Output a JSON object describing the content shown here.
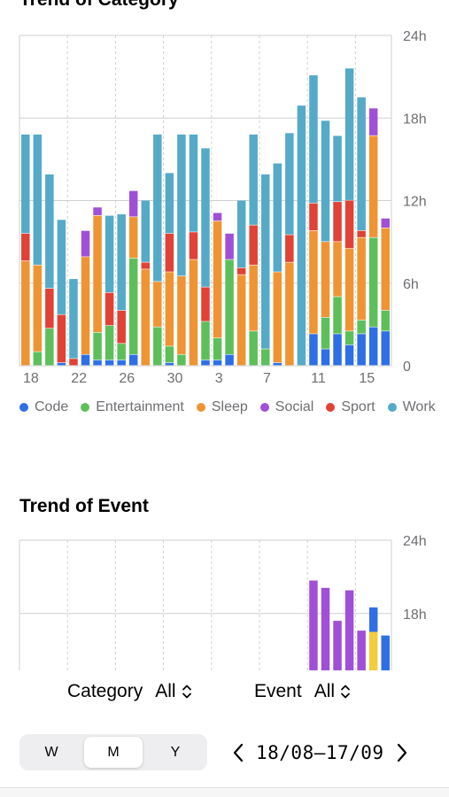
{
  "trend_category": {
    "title": "Trend of Category",
    "legend": [
      {
        "label": "Code",
        "color": "#2f6fe6"
      },
      {
        "label": "Entertainment",
        "color": "#5dbf5a"
      },
      {
        "label": "Sleep",
        "color": "#ef9433"
      },
      {
        "label": "Social",
        "color": "#a050d6"
      },
      {
        "label": "Sport",
        "color": "#e04235"
      },
      {
        "label": "Work",
        "color": "#55aac8"
      }
    ]
  },
  "trend_event": {
    "title": "Trend of Event",
    "series_colors": [
      "#a050d6",
      "#2f6fe6",
      "#f2cd3c"
    ]
  },
  "filters": {
    "category_label": "Category",
    "category_value": "All",
    "event_label": "Event",
    "event_value": "All"
  },
  "period_tabs": [
    "W",
    "M",
    "Y"
  ],
  "active_tab": "M",
  "date_range": "18/08–17/09",
  "chart_data": [
    {
      "type": "bar",
      "stacked": true,
      "title": "Trend of Category",
      "y_ticks": [
        "24h",
        "18h",
        "12h",
        "6h",
        "0"
      ],
      "ylim": [
        0,
        24
      ],
      "y_axis_position": "right",
      "x_tick_labels": [
        "18",
        "22",
        "26",
        "30",
        "3",
        "7",
        "11",
        "15"
      ],
      "grid": true,
      "legend_position": "bottom",
      "categories": [
        "18",
        "19",
        "20",
        "21",
        "22",
        "23",
        "24",
        "25",
        "26",
        "27",
        "28",
        "29",
        "30",
        "31",
        "1",
        "2",
        "3",
        "4",
        "5",
        "6",
        "7",
        "8",
        "9",
        "10",
        "11",
        "12",
        "13",
        "14",
        "15",
        "16",
        "17"
      ],
      "series": [
        {
          "name": "Code",
          "values": [
            0,
            0,
            0,
            0.2,
            0,
            0.8,
            0.4,
            0.4,
            0.4,
            0.8,
            0,
            0,
            0.2,
            0,
            0,
            0.4,
            0.4,
            0.8,
            0,
            0,
            0,
            0.2,
            0,
            0,
            2.3,
            1.2,
            2.3,
            1.5,
            2.3,
            2.8,
            2.5
          ]
        },
        {
          "name": "Entertainment",
          "values": [
            0,
            1.0,
            2.7,
            0,
            0,
            0,
            2.0,
            2.5,
            1.2,
            7.0,
            0,
            2.8,
            1.2,
            0.8,
            0,
            2.8,
            1.6,
            6.9,
            0,
            2.5,
            1.2,
            0,
            0,
            0,
            0,
            2.3,
            2.7,
            1.0,
            1.0,
            6.5,
            1.5
          ]
        },
        {
          "name": "Sleep",
          "values": [
            7.6,
            6.3,
            0,
            0,
            0,
            7.1,
            8.5,
            0,
            0,
            3.0,
            7.0,
            3.3,
            5.4,
            5.7,
            7.7,
            0,
            8.5,
            0,
            6.6,
            4.8,
            0,
            6.6,
            7.5,
            0,
            7.5,
            5.5,
            4.0,
            6.0,
            6.0,
            7.4,
            6.0
          ]
        },
        {
          "name": "Social",
          "values": [
            0,
            0,
            0,
            0,
            0,
            1.9,
            0.6,
            0,
            0,
            1.9,
            0,
            0,
            0,
            0,
            0,
            0,
            0.6,
            1.9,
            0,
            0,
            0,
            0,
            0,
            0,
            0,
            0,
            0,
            0,
            0,
            2.0,
            0.7
          ]
        },
        {
          "name": "Sport",
          "values": [
            2.0,
            0,
            2.9,
            3.5,
            0.5,
            0,
            0,
            2.4,
            2.4,
            0,
            0.5,
            0,
            2.8,
            0,
            2.0,
            2.5,
            0,
            0,
            0.5,
            2.9,
            0,
            0,
            2.0,
            0,
            2.0,
            0,
            2.9,
            3.5,
            0.5,
            0,
            0
          ]
        },
        {
          "name": "Work",
          "values": [
            7.2,
            9.5,
            8.3,
            6.9,
            5.8,
            0,
            0,
            5.6,
            7.0,
            0,
            4.5,
            10.7,
            4.4,
            10.3,
            7.1,
            10.1,
            0,
            0,
            4.9,
            6.6,
            12.7,
            7.9,
            7.4,
            18.9,
            9.3,
            8.8,
            4.8,
            9.6,
            9.7,
            0,
            0
          ]
        }
      ]
    },
    {
      "type": "bar",
      "stacked": true,
      "title": "Trend of Event",
      "y_ticks": [
        "24h",
        "18h"
      ],
      "y_axis_position": "right",
      "ylim": [
        0,
        24
      ],
      "partially_visible": true,
      "bars": [
        {
          "x": "11",
          "color": "#a050d6",
          "value": 20.7
        },
        {
          "x": "12",
          "color": "#a050d6",
          "value": 20.1
        },
        {
          "x": "13",
          "color": "#a050d6",
          "value": 17.4
        },
        {
          "x": "14",
          "color": "#a050d6",
          "value": 19.9
        },
        {
          "x": "15",
          "color": "#a050d6",
          "value": 16.6
        },
        {
          "x": "16",
          "color": "#f2cd3c",
          "value": 16.5
        },
        {
          "x": "16",
          "color": "#2f6fe6",
          "value": 2.0
        },
        {
          "x": "17",
          "color": "#2f6fe6",
          "value": 16.2
        }
      ]
    }
  ]
}
